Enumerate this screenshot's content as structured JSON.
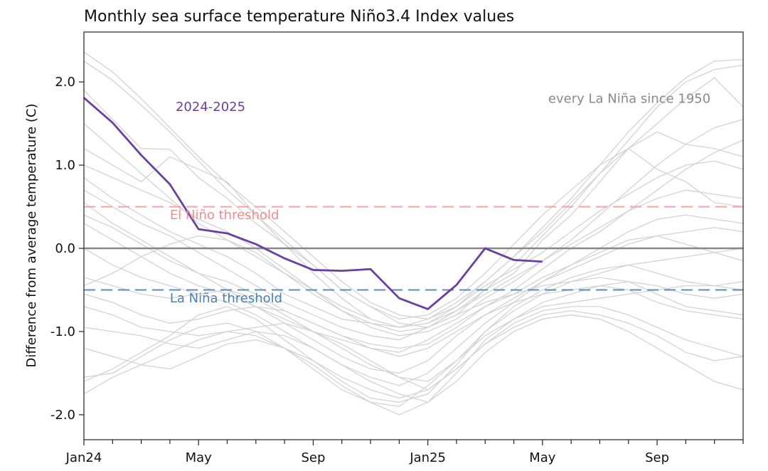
{
  "chart_data": {
    "type": "line",
    "title": "Monthly sea surface temperature Niño3.4 Index values",
    "ylabel": "Difference from average temperature (C)",
    "xlabel": "",
    "ylim": [
      -2.3,
      2.6
    ],
    "xlim": [
      0,
      23
    ],
    "y_ticks": [
      {
        "value": 2.0,
        "label": "2.0"
      },
      {
        "value": 1.0,
        "label": "1.0"
      },
      {
        "value": 0.0,
        "label": "0.0"
      },
      {
        "value": -1.0,
        "label": "-1.0"
      },
      {
        "value": -2.0,
        "label": "-2.0"
      }
    ],
    "x_minor_ticks": [
      0,
      1,
      2,
      3,
      4,
      5,
      6,
      7,
      8,
      9,
      10,
      11,
      12,
      13,
      14,
      15,
      16,
      17,
      18,
      19,
      20,
      21,
      22,
      23
    ],
    "x_tick_labels": [
      {
        "value": 0,
        "label": "Jan24"
      },
      {
        "value": 4,
        "label": "May"
      },
      {
        "value": 8,
        "label": "Sep"
      },
      {
        "value": 12,
        "label": "Jan25"
      },
      {
        "value": 16,
        "label": "May"
      },
      {
        "value": 20,
        "label": "Sep"
      }
    ],
    "grid": false,
    "thresholds": [
      {
        "name": "El Niño threshold",
        "value": 0.5,
        "color": "#f4a4a4",
        "style": "dashed"
      },
      {
        "name": "La Niña threshold",
        "value": -0.5,
        "color": "#5b8db8",
        "style": "dashed"
      }
    ],
    "zero_line": {
      "value": 0.0,
      "color": "#888888"
    },
    "annotations": [
      {
        "text": "2024-2025",
        "color": "#6b3fa0",
        "x": 3.2,
        "y": 1.65
      },
      {
        "text": "every La Niña since 1950",
        "color": "#8a8a8a",
        "x": 16.2,
        "y": 1.75
      },
      {
        "text": "El Niño threshold",
        "color": "#f08c8c",
        "x": 3.0,
        "y": 0.35
      },
      {
        "text": "La Niña threshold",
        "color": "#4a7fb0",
        "x": 3.0,
        "y": -0.65
      }
    ],
    "highlight_series": {
      "name": "2024-2025",
      "color": "#6b3fa0",
      "x": [
        0,
        1,
        2,
        3,
        4,
        5,
        6,
        7,
        8,
        9,
        10,
        11,
        12,
        13,
        14,
        15,
        16
      ],
      "values": [
        1.81,
        1.51,
        1.12,
        0.77,
        0.23,
        0.18,
        0.05,
        -0.12,
        -0.26,
        -0.27,
        -0.25,
        -0.6,
        -0.73,
        -0.44,
        0.0,
        -0.14,
        -0.16
      ]
    },
    "background_series_color": "#d3d3d3",
    "background_series": [
      {
        "values": [
          2.36,
          2.12,
          1.8,
          1.45,
          1.1,
          0.78,
          0.5,
          0.2,
          -0.1,
          -0.4,
          -0.65,
          -0.8,
          -0.85,
          -0.7,
          -0.4,
          -0.1,
          0.25,
          0.6,
          1.0,
          1.4,
          1.75,
          2.05,
          2.25,
          2.27
        ]
      },
      {
        "values": [
          2.25,
          2.02,
          1.72,
          1.4,
          1.05,
          0.7,
          0.4,
          0.05,
          -0.3,
          -0.6,
          -0.85,
          -0.95,
          -0.9,
          -0.75,
          -0.5,
          -0.2,
          0.15,
          0.5,
          0.9,
          1.3,
          1.7,
          2.0,
          2.15,
          2.2
        ]
      },
      {
        "values": [
          1.9,
          1.55,
          1.2,
          1.19,
          0.85,
          0.6,
          0.3,
          0.05,
          -0.2,
          -0.5,
          -0.7,
          -0.9,
          -0.95,
          -0.8,
          -0.5,
          -0.3,
          0.1,
          0.4,
          0.8,
          1.2,
          1.5,
          1.8,
          2.05,
          1.7
        ]
      },
      {
        "values": [
          1.5,
          1.2,
          0.9,
          0.6,
          0.3,
          0.1,
          -0.1,
          -0.3,
          -0.5,
          -0.7,
          -0.85,
          -0.95,
          -0.85,
          -0.65,
          -0.4,
          -0.1,
          0.2,
          0.55,
          0.9,
          1.2,
          1.4,
          1.25,
          1.2,
          1.1
        ]
      },
      {
        "values": [
          1.2,
          1.0,
          0.8,
          1.1,
          0.95,
          0.8,
          0.4,
          0.1,
          -0.2,
          -0.5,
          -0.7,
          -0.85,
          -0.8,
          -0.6,
          -0.3,
          0.05,
          0.4,
          0.7,
          1.0,
          1.2,
          0.95,
          0.8,
          0.55,
          0.5
        ]
      },
      {
        "values": [
          0.85,
          0.6,
          0.4,
          0.2,
          0.05,
          -0.1,
          -0.3,
          -0.55,
          -0.7,
          -0.85,
          -0.9,
          -0.95,
          -0.9,
          -0.7,
          -0.45,
          -0.25,
          -0.05,
          0.2,
          0.45,
          0.65,
          0.85,
          1.0,
          1.05,
          0.95
        ]
      },
      {
        "values": [
          0.7,
          0.5,
          0.3,
          0.15,
          -0.05,
          -0.25,
          -0.45,
          -0.65,
          -0.8,
          -0.95,
          -1.05,
          -1.1,
          -0.95,
          -0.75,
          -0.55,
          -0.35,
          -0.15,
          0.05,
          0.25,
          0.45,
          0.6,
          0.7,
          0.65,
          0.6
        ]
      },
      {
        "values": [
          0.55,
          0.3,
          0.1,
          -0.1,
          -0.3,
          -0.5,
          -0.7,
          -0.85,
          -1.0,
          -1.1,
          -1.2,
          -1.25,
          -1.1,
          -0.9,
          -0.7,
          -0.55,
          -0.35,
          -0.2,
          0.0,
          0.2,
          0.35,
          0.4,
          0.35,
          0.3
        ]
      },
      {
        "values": [
          0.3,
          0.1,
          -0.1,
          -0.3,
          -0.45,
          -0.55,
          -0.7,
          -0.9,
          -1.1,
          -1.3,
          -1.45,
          -1.5,
          -1.35,
          -1.05,
          -0.8,
          -0.6,
          -0.4,
          -0.25,
          -0.1,
          0.05,
          0.15,
          0.2,
          0.25,
          0.2
        ]
      },
      {
        "values": [
          0.0,
          -0.2,
          -0.35,
          -0.45,
          -0.55,
          -0.65,
          -0.8,
          -1.0,
          -1.2,
          -1.4,
          -1.55,
          -1.65,
          -1.5,
          -1.2,
          -0.9,
          -0.65,
          -0.4,
          -0.2,
          -0.05,
          0.1,
          0.15,
          0.05,
          -0.05,
          -0.15
        ]
      },
      {
        "values": [
          -0.35,
          -0.45,
          -0.55,
          -0.6,
          -0.55,
          -0.5,
          -0.6,
          -0.8,
          -1.0,
          -1.2,
          -1.4,
          -1.55,
          -1.6,
          -1.35,
          -1.0,
          -0.7,
          -0.5,
          -0.35,
          -0.25,
          -0.2,
          -0.3,
          -0.4,
          -0.45,
          -0.5
        ]
      },
      {
        "values": [
          -0.55,
          -0.65,
          -0.8,
          -0.9,
          -0.85,
          -0.75,
          -0.7,
          -0.75,
          -0.9,
          -1.05,
          -1.2,
          -1.3,
          -1.2,
          -1.0,
          -0.8,
          -0.65,
          -0.55,
          -0.5,
          -0.45,
          -0.5,
          -0.65,
          -0.75,
          -0.8,
          -0.85
        ]
      },
      {
        "values": [
          -0.7,
          -0.8,
          -0.95,
          -1.0,
          -1.05,
          -1.0,
          -0.95,
          -0.9,
          -1.0,
          -1.15,
          -1.35,
          -1.55,
          -1.7,
          -1.45,
          -1.15,
          -0.9,
          -0.75,
          -0.7,
          -0.7,
          -0.8,
          -0.95,
          -1.1,
          -1.2,
          -1.3
        ]
      },
      {
        "values": [
          -0.95,
          -1.0,
          -1.05,
          -1.15,
          -1.2,
          -1.1,
          -1.0,
          -1.05,
          -1.2,
          -1.4,
          -1.6,
          -1.75,
          -1.85,
          -1.6,
          -1.25,
          -1.0,
          -0.85,
          -0.8,
          -0.85,
          -1.0,
          -1.2,
          -1.4,
          -1.6,
          -1.7
        ]
      },
      {
        "values": [
          -1.2,
          -1.3,
          -1.4,
          -1.45,
          -1.3,
          -1.15,
          -1.1,
          -1.2,
          -1.35,
          -1.55,
          -1.7,
          -1.8,
          -1.7,
          -1.45,
          -1.15,
          -0.95,
          -0.8,
          -0.75,
          -0.8,
          -0.9,
          -1.05,
          -1.25,
          -1.35,
          -1.3
        ]
      },
      {
        "values": [
          -1.55,
          -1.5,
          -1.3,
          -1.1,
          -0.95,
          -0.9,
          -1.0,
          -1.2,
          -1.45,
          -1.7,
          -1.85,
          -1.9,
          -1.65,
          -1.35,
          -1.05,
          -0.85,
          -0.7,
          -0.65,
          -0.6,
          -0.55,
          -0.5,
          -0.45,
          -0.45,
          -0.4
        ]
      },
      {
        "values": [
          -1.6,
          -1.45,
          -1.25,
          -1.05,
          -0.8,
          -0.7,
          -0.85,
          -1.1,
          -1.35,
          -1.6,
          -1.8,
          -1.85,
          -1.75,
          -1.4,
          -1.0,
          -0.75,
          -0.55,
          -0.4,
          -0.3,
          -0.2,
          -0.15,
          -0.1,
          -0.05,
          0.0
        ]
      },
      {
        "values": [
          -1.75,
          -1.55,
          -1.4,
          -1.25,
          -1.1,
          -1.0,
          -1.05,
          -1.2,
          -1.4,
          -1.65,
          -1.85,
          -2.0,
          -1.85,
          -1.5,
          -1.1,
          -0.85,
          -0.65,
          -0.55,
          -0.45,
          -0.4,
          -0.45,
          -0.55,
          -0.6,
          -0.55
        ]
      },
      {
        "values": [
          -0.45,
          -0.3,
          -0.1,
          0.05,
          0.15,
          0.1,
          -0.05,
          -0.3,
          -0.55,
          -0.75,
          -0.9,
          -1.0,
          -0.95,
          -0.8,
          -0.65,
          -0.55,
          -0.45,
          -0.4,
          -0.35,
          -0.4,
          -0.55,
          -0.7,
          -0.75,
          -0.8
        ]
      },
      {
        "values": [
          0.4,
          0.25,
          0.05,
          -0.15,
          -0.3,
          -0.4,
          -0.55,
          -0.75,
          -0.9,
          -1.05,
          -1.15,
          -1.2,
          -1.15,
          -0.95,
          -0.7,
          -0.5,
          -0.25,
          0.0,
          0.2,
          0.45,
          0.7,
          0.95,
          1.15,
          1.3
        ]
      },
      {
        "values": [
          1.0,
          0.85,
          0.7,
          0.55,
          0.35,
          0.2,
          0.0,
          -0.25,
          -0.5,
          -0.75,
          -0.95,
          -1.05,
          -1.0,
          -0.85,
          -0.6,
          -0.4,
          -0.15,
          0.1,
          0.4,
          0.7,
          1.0,
          1.25,
          1.45,
          1.55
        ]
      }
    ]
  }
}
